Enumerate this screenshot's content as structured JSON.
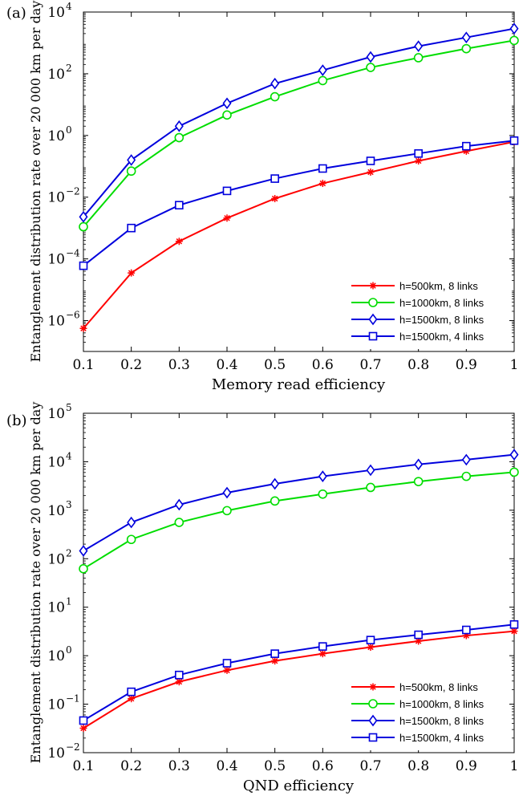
{
  "chart_data": [
    {
      "panel_label": "(a)",
      "type": "line",
      "xlabel": "Memory read efficiency",
      "ylabel": "Entanglement distribution rate over 20 000 km per day",
      "x_scale": "linear",
      "y_scale": "log",
      "xlim": [
        0.1,
        1
      ],
      "ylim_exp": [
        -7,
        4
      ],
      "x_ticks": [
        0.1,
        0.2,
        0.3,
        0.4,
        0.5,
        0.6,
        0.7,
        0.8,
        0.9,
        1
      ],
      "x_tick_labels": [
        "0.1",
        "0.2",
        "0.3",
        "0.4",
        "0.5",
        "0.6",
        "0.7",
        "0.8",
        "0.9",
        "1"
      ],
      "y_tick_exps": [
        -6,
        -4,
        -2,
        0,
        2,
        4
      ],
      "y_tick_labels": [
        {
          "base": "10",
          "exp": "−6"
        },
        {
          "base": "10",
          "exp": "−4"
        },
        {
          "base": "10",
          "exp": "−2"
        },
        {
          "base": "10",
          "exp": "0"
        },
        {
          "base": "10",
          "exp": "2"
        },
        {
          "base": "10",
          "exp": "4"
        }
      ],
      "grid": false,
      "legend_position": "lower-right",
      "x": [
        0.1,
        0.2,
        0.3,
        0.4,
        0.5,
        0.6,
        0.7,
        0.8,
        0.9,
        1.0
      ],
      "series": [
        {
          "name": "h=500km, 8 links",
          "color": "#ff0000",
          "marker": "star",
          "values": [
            5.6e-07,
            3.5e-05,
            0.00037,
            0.0021,
            0.009,
            0.028,
            0.065,
            0.15,
            0.31,
            0.62
          ]
        },
        {
          "name": "h=1000km, 8 links",
          "color": "#00dd00",
          "marker": "circle",
          "values": [
            0.0011,
            0.07,
            0.85,
            4.6,
            18,
            60,
            160,
            330,
            650,
            1200
          ]
        },
        {
          "name": "h=1500km, 8 links",
          "color": "#0000dd",
          "marker": "diamond",
          "values": [
            0.0023,
            0.16,
            2.0,
            11,
            48,
            130,
            350,
            780,
            1500,
            2900
          ]
        },
        {
          "name": "h=1500km, 4 links",
          "color": "#0000dd",
          "marker": "square",
          "values": [
            6e-05,
            0.001,
            0.0055,
            0.016,
            0.04,
            0.085,
            0.15,
            0.26,
            0.45,
            0.68
          ]
        }
      ]
    },
    {
      "panel_label": "(b)",
      "type": "line",
      "xlabel": "QND efficiency",
      "ylabel": "Entanglement distribution rate over 20 000 km per day",
      "x_scale": "linear",
      "y_scale": "log",
      "xlim": [
        0.1,
        1
      ],
      "ylim_exp": [
        -2,
        5
      ],
      "x_ticks": [
        0.1,
        0.2,
        0.3,
        0.4,
        0.5,
        0.6,
        0.7,
        0.8,
        0.9,
        1
      ],
      "x_tick_labels": [
        "0.1",
        "0.2",
        "0.3",
        "0.4",
        "0.5",
        "0.6",
        "0.7",
        "0.8",
        "0.9",
        "1"
      ],
      "y_tick_exps": [
        -2,
        -1,
        0,
        1,
        2,
        3,
        4,
        5
      ],
      "y_tick_labels": [
        {
          "base": "10",
          "exp": "−2"
        },
        {
          "base": "10",
          "exp": "−1"
        },
        {
          "base": "10",
          "exp": "0"
        },
        {
          "base": "10",
          "exp": "1"
        },
        {
          "base": "10",
          "exp": "2"
        },
        {
          "base": "10",
          "exp": "3"
        },
        {
          "base": "10",
          "exp": "4"
        },
        {
          "base": "10",
          "exp": "5"
        }
      ],
      "grid": false,
      "legend_position": "lower-right",
      "x": [
        0.1,
        0.2,
        0.3,
        0.4,
        0.5,
        0.6,
        0.7,
        0.8,
        0.9,
        1.0
      ],
      "series": [
        {
          "name": "h=500km, 8 links",
          "color": "#ff0000",
          "marker": "star",
          "values": [
            0.032,
            0.13,
            0.29,
            0.5,
            0.78,
            1.1,
            1.5,
            2.0,
            2.6,
            3.2
          ]
        },
        {
          "name": "h=1000km, 8 links",
          "color": "#00dd00",
          "marker": "circle",
          "values": [
            62,
            250,
            560,
            980,
            1550,
            2150,
            2950,
            3900,
            5000,
            6100
          ]
        },
        {
          "name": "h=1500km, 8 links",
          "color": "#0000dd",
          "marker": "diamond",
          "values": [
            145,
            560,
            1300,
            2300,
            3500,
            5000,
            6700,
            8800,
            11000,
            14000
          ]
        },
        {
          "name": "h=1500km, 4 links",
          "color": "#0000dd",
          "marker": "square",
          "values": [
            0.046,
            0.18,
            0.4,
            0.7,
            1.1,
            1.55,
            2.1,
            2.7,
            3.4,
            4.4
          ]
        }
      ]
    }
  ]
}
